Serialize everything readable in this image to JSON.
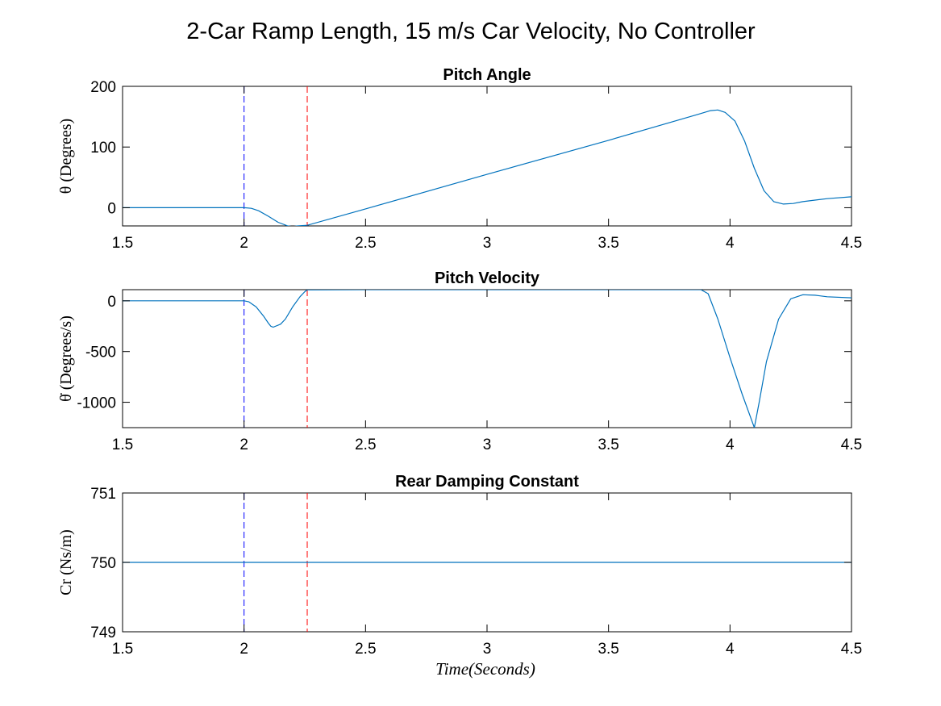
{
  "figure_title": "2-Car Ramp Length,  15 m/s Car Velocity, No Controller",
  "colors": {
    "series": "#0072BD",
    "marker_blue": "#0000FF",
    "marker_red": "#FF0000",
    "axis": "#000000"
  },
  "chart_data": [
    {
      "type": "line",
      "title": "Pitch Angle",
      "ylabel": "θ (Degrees)",
      "xlabel": "",
      "xlim": [
        1.5,
        4.5
      ],
      "ylim": [
        -30,
        200
      ],
      "xticks": [
        1.5,
        2,
        2.5,
        3,
        3.5,
        4,
        4.5
      ],
      "xtick_labels": [
        "1.5",
        "2",
        "2.5",
        "3",
        "3.5",
        "4",
        "4.5"
      ],
      "yticks": [
        0,
        100,
        200
      ],
      "ytick_labels": [
        "0",
        "100",
        "200"
      ],
      "vlines": [
        {
          "x": 2.0,
          "color": "blue",
          "style": "dashed"
        },
        {
          "x": 2.26,
          "color": "red",
          "style": "dashed"
        }
      ],
      "series": [
        {
          "x": [
            1.5,
            2.0,
            2.03,
            2.06,
            2.1,
            2.14,
            2.18,
            2.2,
            2.22,
            2.26,
            2.5,
            3.0,
            3.5,
            3.87,
            3.92,
            3.95,
            3.98,
            4.02,
            4.06,
            4.1,
            4.14,
            4.18,
            4.22,
            4.26,
            4.3,
            4.4,
            4.5
          ],
          "y": [
            0,
            0,
            -1,
            -5,
            -14,
            -24,
            -30,
            -31,
            -30,
            -29,
            -2,
            55,
            111,
            154,
            160,
            161,
            157,
            143,
            110,
            65,
            28,
            10,
            6,
            7,
            10,
            15,
            18
          ]
        }
      ],
      "grid": false
    },
    {
      "type": "line",
      "title": "Pitch Velocity",
      "ylabel": "θ̇ (Degrees/s)",
      "xlabel": "",
      "xlim": [
        1.5,
        4.5
      ],
      "ylim": [
        -1250,
        110
      ],
      "xticks": [
        1.5,
        2,
        2.5,
        3,
        3.5,
        4,
        4.5
      ],
      "xtick_labels": [
        "1.5",
        "2",
        "2.5",
        "3",
        "3.5",
        "4",
        "4.5"
      ],
      "yticks": [
        -1000,
        -500,
        0
      ],
      "ytick_labels": [
        "-1000",
        "-500",
        "0"
      ],
      "vlines": [
        {
          "x": 2.0,
          "color": "blue",
          "style": "dashed"
        },
        {
          "x": 2.26,
          "color": "red",
          "style": "dashed"
        }
      ],
      "series": [
        {
          "x": [
            1.5,
            2.0,
            2.02,
            2.05,
            2.08,
            2.1,
            2.11,
            2.12,
            2.15,
            2.17,
            2.2,
            2.23,
            2.25,
            2.26,
            2.5,
            3.0,
            3.5,
            3.88,
            3.91,
            3.95,
            4.0,
            4.05,
            4.1,
            4.12,
            4.15,
            4.2,
            4.25,
            4.3,
            4.35,
            4.4,
            4.5
          ],
          "y": [
            0,
            0,
            -10,
            -60,
            -150,
            -220,
            -250,
            -260,
            -230,
            -180,
            -60,
            40,
            90,
            108,
            110,
            110,
            110,
            110,
            70,
            -180,
            -560,
            -920,
            -1250,
            -1000,
            -600,
            -180,
            20,
            60,
            55,
            40,
            30
          ]
        }
      ],
      "grid": false
    },
    {
      "type": "line",
      "title": "Rear Damping Constant",
      "ylabel": "Cr (Ns/m)",
      "xlabel": "Time(Seconds)",
      "xlim": [
        1.5,
        4.5
      ],
      "ylim": [
        749,
        751
      ],
      "xticks": [
        1.5,
        2,
        2.5,
        3,
        3.5,
        4,
        4.5
      ],
      "xtick_labels": [
        "1.5",
        "2",
        "2.5",
        "3",
        "3.5",
        "4",
        "4.5"
      ],
      "yticks": [
        749,
        750,
        751
      ],
      "ytick_labels": [
        "749",
        "750",
        "751"
      ],
      "vlines": [
        {
          "x": 2.0,
          "color": "blue",
          "style": "dashed"
        },
        {
          "x": 2.26,
          "color": "red",
          "style": "dashed"
        }
      ],
      "series": [
        {
          "x": [
            1.5,
            4.5
          ],
          "y": [
            750,
            750
          ]
        }
      ],
      "grid": false
    }
  ]
}
